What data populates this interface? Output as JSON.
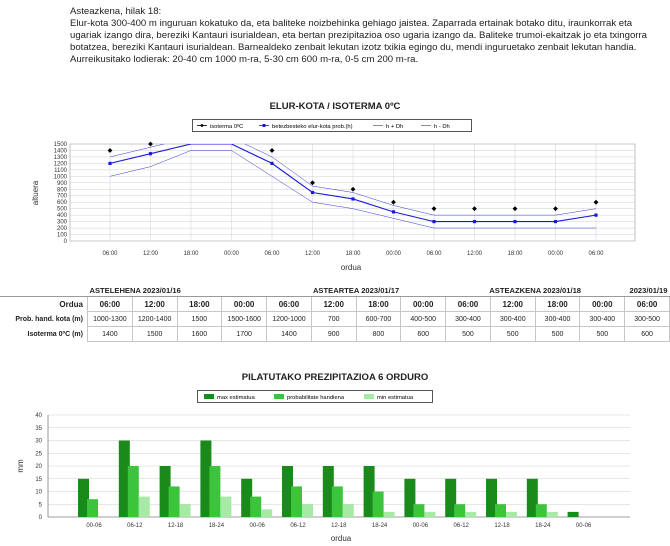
{
  "intro": {
    "title": "Asteazkena, hilak 18:",
    "text1": "Elur-kota 300-400 m inguruan kokatuko da, eta baliteke noizbehinka gehiago jaistea. Zaparrada ertainak botako ditu, iraunkorrak eta ugariak izango dira, bereziki Kantauri isurialdean, eta bertan prezipitazioa oso ugaria izango da. Baliteke trumoi-ekaitzak jo eta txingorra botatzea, bereziki Kantauri isurialdean. Barnealdeko zenbait lekutan izotz txikia egingo du, mendi inguruetako zenbait lekutan handia.",
    "text2": "Aurreikusitako lodierak: 20-40 cm 1000 m-ra, 5-30 cm 600 m-ra, 0-5 cm 200 m-ra."
  },
  "snow_chart": {
    "title": "ELUR-KOTA / ISOTERMA 0ºC",
    "legend": [
      "isoterma 0ºC",
      "betezbesteko elur-kota prob.(h)",
      "h + Dh",
      "h - Dh"
    ],
    "xlabel": "ordua",
    "ylabel": "altuera",
    "x_ticks": [
      "06:00",
      "12:00",
      "18:00",
      "00:00",
      "06:00",
      "12:00",
      "18:00",
      "00:00",
      "06:00",
      "12:00",
      "18:00",
      "00:00",
      "06:00"
    ],
    "y_ticks": [
      "0",
      "100",
      "200",
      "300",
      "400",
      "500",
      "600",
      "700",
      "800",
      "900",
      "1000",
      "1100",
      "1200",
      "1300",
      "1400",
      "1500"
    ],
    "colors": {
      "isotherm": "#000000",
      "snow": "#1a1ad6",
      "band": "#3a3acc",
      "grid": "#bbbbbb"
    }
  },
  "chart_data": [
    {
      "type": "line",
      "title": "ELUR-KOTA / ISOTERMA 0ºC",
      "xlabel": "ordua",
      "ylabel": "altuera",
      "x": [
        "06:00",
        "12:00",
        "18:00",
        "00:00",
        "06:00",
        "12:00",
        "18:00",
        "00:00",
        "06:00",
        "12:00",
        "18:00",
        "00:00",
        "06:00"
      ],
      "ylim": [
        0,
        1500
      ],
      "grid": true,
      "legend_position": "top",
      "series": [
        {
          "name": "isoterma 0ºC",
          "values": [
            1400,
            1500,
            1600,
            1700,
            1400,
            900,
            800,
            600,
            500,
            500,
            500,
            500,
            600
          ]
        },
        {
          "name": "betezbesteko elur-kota prob.(h)",
          "values": [
            1200,
            1350,
            1500,
            1500,
            1200,
            750,
            650,
            450,
            300,
            300,
            300,
            300,
            400
          ]
        },
        {
          "name": "h + Dh",
          "values": [
            1300,
            1450,
            1600,
            1600,
            1300,
            850,
            750,
            550,
            400,
            400,
            400,
            400,
            500
          ]
        },
        {
          "name": "h - Dh",
          "values": [
            1000,
            1150,
            1400,
            1400,
            1000,
            600,
            500,
            350,
            200,
            200,
            200,
            200,
            200
          ]
        }
      ]
    },
    {
      "type": "bar",
      "title": "PILATUTAKO PREZIPITAZIOA 6 ORDURO",
      "xlabel": "ordua",
      "ylabel": "mm",
      "categories": [
        "00-06",
        "06-12",
        "12-18",
        "18-24",
        "00-06",
        "06-12",
        "12-18",
        "18-24",
        "00-06",
        "06-12",
        "12-18",
        "18-24",
        "00-06"
      ],
      "ylim": [
        0,
        40
      ],
      "grid": true,
      "legend_position": "top",
      "series": [
        {
          "name": "max estimatua",
          "values": [
            15,
            30,
            20,
            30,
            15,
            20,
            20,
            20,
            15,
            15,
            15,
            15,
            2
          ]
        },
        {
          "name": "probabilitate handiena",
          "values": [
            7,
            20,
            12,
            20,
            8,
            12,
            12,
            10,
            5,
            5,
            5,
            5,
            0
          ]
        },
        {
          "name": "min estimatua",
          "values": [
            0,
            8,
            5,
            8,
            3,
            5,
            5,
            2,
            2,
            2,
            2,
            2,
            0
          ]
        }
      ],
      "colors": [
        "#1a8a1a",
        "#3cc43c",
        "#a6eaa6"
      ]
    }
  ],
  "table": {
    "days": [
      "ASTELEHENA 2023/01/16",
      "ASTEARTEA 2023/01/17",
      "ASTEAZKENA 2023/01/18",
      "2023/01/19"
    ],
    "rows": [
      {
        "label": "Orduа",
        "values": [
          "06:00",
          "12:00",
          "18:00",
          "00:00",
          "06:00",
          "12:00",
          "18:00",
          "00:00",
          "06:00",
          "12:00",
          "18:00",
          "00:00",
          "06:00"
        ]
      },
      {
        "label": "Prob. hand. kota (m)",
        "values": [
          "1000-1300",
          "1200-1400",
          "1500",
          "1500-1600",
          "1200-1000",
          "700",
          "600-700",
          "400-500",
          "300-400",
          "300-400",
          "300-400",
          "300-400",
          "300-500"
        ]
      },
      {
        "label": "Isoterma 0ºC (m)",
        "values": [
          "1400",
          "1500",
          "1600",
          "1700",
          "1400",
          "900",
          "800",
          "600",
          "500",
          "500",
          "500",
          "500",
          "600"
        ]
      }
    ]
  },
  "precip_chart": {
    "title": "PILATUTAKO PREZIPITAZIOA 6 ORDURO",
    "legend": [
      "max estimatua",
      "probabilitate handiena",
      "min estimatua"
    ],
    "xlabel": "ordua",
    "ylabel": "mm",
    "y_ticks": [
      "0",
      "5",
      "10",
      "15",
      "20",
      "25",
      "30",
      "35",
      "40"
    ],
    "x_ticks": [
      "00-06",
      "06-12",
      "12-18",
      "18-24",
      "00-06",
      "06-12",
      "12-18",
      "18-24",
      "00-06",
      "06-12",
      "12-18",
      "18-24",
      "00-06"
    ]
  }
}
